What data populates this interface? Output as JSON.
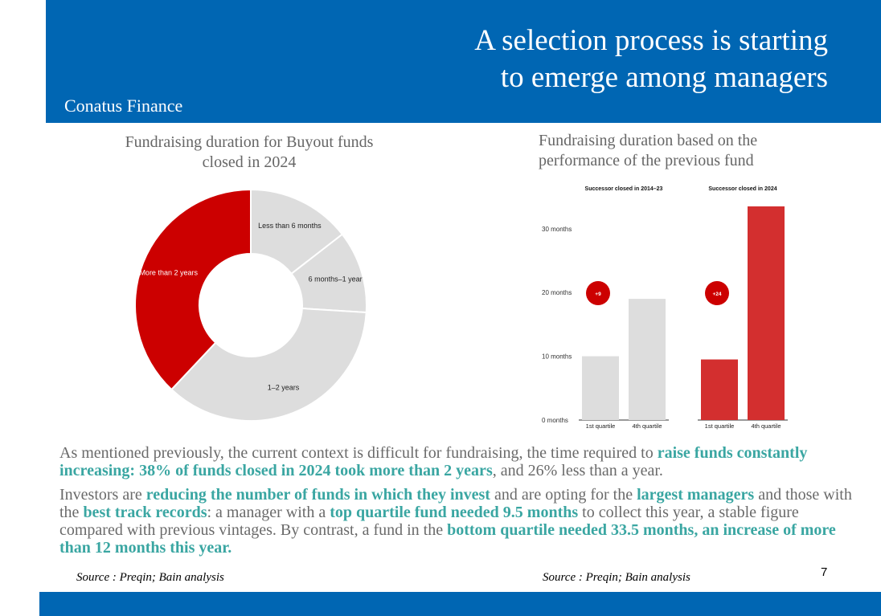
{
  "header": {
    "title_line1": "A selection process is starting",
    "title_line2": "to emerge among managers",
    "brand": "Conatus Finance"
  },
  "colors": {
    "header_bg": "#0066b3",
    "accent_red": "#cc0000",
    "bar_red": "#d32f2f",
    "grey": "#dddddd",
    "highlight": "#3aa6a2"
  },
  "chart_data": [
    {
      "type": "pie",
      "donut": true,
      "title_line1": "Fundraising duration for Buyout funds",
      "title_line2": "closed in 2024",
      "slices": [
        {
          "label": "Less than 6 months",
          "value": 14.5,
          "color": "#dddddd"
        },
        {
          "label": "6 months–1 year",
          "value": 11.5,
          "color": "#dddddd"
        },
        {
          "label": "1–2 years",
          "value": 36,
          "color": "#dddddd"
        },
        {
          "label": "More than 2 years",
          "value": 38,
          "color": "#cc0000"
        }
      ]
    },
    {
      "type": "bar",
      "title_line1": "Fundraising duration based on the",
      "title_line2": "performance of the previous fund",
      "ylim": [
        0,
        34
      ],
      "yticks": [
        {
          "value": 0,
          "label": "0 months"
        },
        {
          "value": 10,
          "label": "10 months"
        },
        {
          "value": 20,
          "label": "20 months"
        },
        {
          "value": 30,
          "label": "30 months"
        }
      ],
      "groups": [
        {
          "name": "Successor closed in 2014–23",
          "badge": "+9",
          "color": "#dddddd",
          "categories": [
            "1st quartile",
            "4th quartile"
          ],
          "values": [
            10,
            19
          ]
        },
        {
          "name": "Successor closed in 2024",
          "badge": "+24",
          "color": "#d32f2f",
          "categories": [
            "1st quartile",
            "4th quartile"
          ],
          "values": [
            9.5,
            33.5
          ]
        }
      ]
    }
  ],
  "text": {
    "p1_a": "As mentioned previously, the current context is difficult for fundraising, the time required to ",
    "p1_b": "raise funds constantly increasing: 38% of funds closed in 2024 took more than 2 years",
    "p1_c": ", and 26% less than a year.",
    "p2_a": "Investors are ",
    "p2_b": "reducing the number of funds in which they invest",
    "p2_c": " and are opting for the ",
    "p2_d": "largest managers",
    "p2_e": " and those with the ",
    "p2_f": "best track records",
    "p2_g": ": a manager with a ",
    "p2_h": "top quartile fund needed 9.5 months",
    "p2_i": " to collect this year, a stable figure compared with previous vintages. By contrast, a fund in the ",
    "p2_j": "bottom quartile needed 33.5 months, an increase of more than 12 months this year."
  },
  "sources": {
    "left": "Source : Preqin; Bain analysis",
    "right": "Source : Preqin; Bain analysis"
  },
  "page_number": "7"
}
